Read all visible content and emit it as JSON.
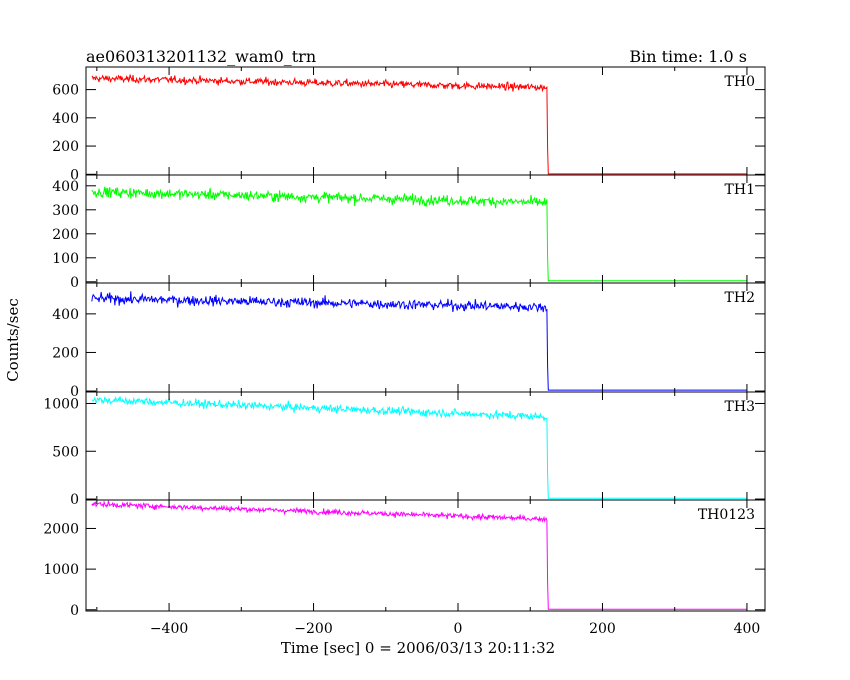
{
  "header": {
    "title": "ae060313201132_wam0_trn",
    "bin_time": "Bin time: 1.0 s"
  },
  "chart_data": {
    "type": "line",
    "title": "ae060313201132_wam0_trn",
    "xlabel": "Time [sec] 0 = 2006/03/13 20:11:32",
    "ylabel": "Counts/sec",
    "xlim": [
      -515,
      425
    ],
    "x_ticks": [
      -400,
      -200,
      0,
      200,
      400
    ],
    "x_tick_labels": [
      "−400",
      "−200",
      "0",
      "200",
      "400"
    ],
    "drop_time": 123,
    "panels": [
      {
        "label": "TH0",
        "color": "#ff0000",
        "ylim": [
          -5,
          760
        ],
        "y_ticks": [
          0,
          200,
          400,
          600
        ],
        "y_tick_labels": [
          "0",
          "200",
          "400",
          "600"
        ],
        "start": 680,
        "end": 615,
        "noise": 22,
        "after": 3
      },
      {
        "label": "TH1",
        "color": "#00ff00",
        "ylim": [
          -5,
          445
        ],
        "y_ticks": [
          0,
          100,
          200,
          300,
          400
        ],
        "y_tick_labels": [
          "0",
          "100",
          "200",
          "300",
          "400"
        ],
        "start": 375,
        "end": 330,
        "noise": 18,
        "after": 4
      },
      {
        "label": "TH2",
        "color": "#0000ff",
        "ylim": [
          -5,
          560
        ],
        "y_ticks": [
          0,
          200,
          400
        ],
        "y_tick_labels": [
          "0",
          "200",
          "400"
        ],
        "start": 480,
        "end": 435,
        "noise": 22,
        "after": 5
      },
      {
        "label": "TH3",
        "color": "#00ffff",
        "ylim": [
          -10,
          1120
        ],
        "y_ticks": [
          0,
          500,
          1000
        ],
        "y_tick_labels": [
          "0",
          "500",
          "1000"
        ],
        "start": 1040,
        "end": 860,
        "noise": 35,
        "after": 8
      },
      {
        "label": "TH0123",
        "color": "#ff00ff",
        "ylim": [
          -30,
          2700
        ],
        "y_ticks": [
          0,
          1000,
          2000
        ],
        "y_tick_labels": [
          "0",
          "1000",
          "2000"
        ],
        "start": 2600,
        "end": 2230,
        "noise": 55,
        "after": 15
      }
    ]
  }
}
